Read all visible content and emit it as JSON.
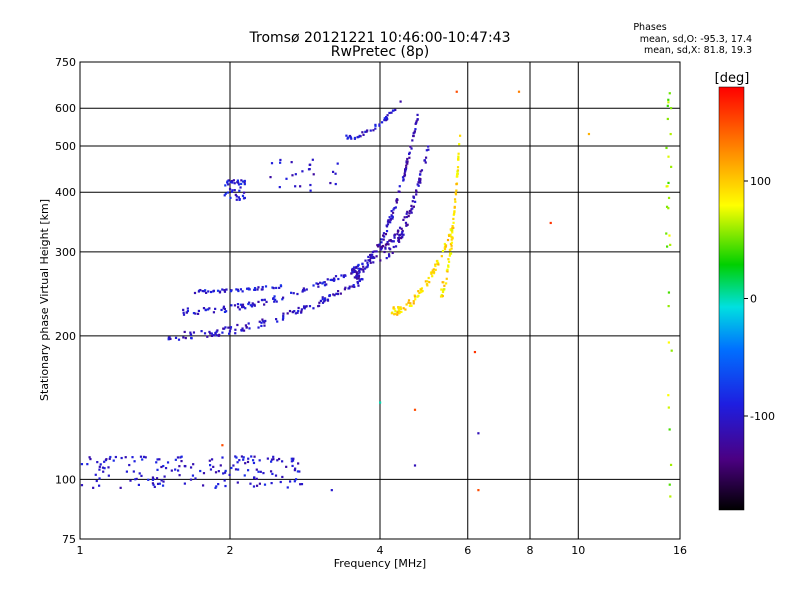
{
  "header": {
    "title": "Tromsø 20121221 10:46:00-10:47:43",
    "subtitle": "RwPretec (8p)",
    "stats_title": "Phases",
    "stats_line1": "mean, sd,O: -95.3, 17.4",
    "stats_line2": "mean, sd,X:  81.8, 19.3"
  },
  "colorbar": {
    "label": "[deg]",
    "min": -180,
    "max": 180,
    "ticks": [
      100,
      0,
      -100
    ],
    "tick_labels": [
      "100",
      "0",
      "-100"
    ]
  },
  "chart_data": {
    "type": "scatter",
    "xlabel": "Frequency [MHz]",
    "ylabel": "Stationary phase Virtual Height [km]",
    "xscale": "log",
    "yscale": "log",
    "xlim": [
      1,
      16
    ],
    "ylim": [
      75,
      750
    ],
    "x_ticks": [
      1,
      2,
      4,
      6,
      8,
      10,
      16
    ],
    "x_tick_labels": [
      "1",
      "2",
      "4",
      "6",
      "8",
      "10",
      "16"
    ],
    "y_ticks": [
      75,
      100,
      200,
      300,
      400,
      500,
      600,
      750
    ],
    "y_tick_labels": [
      "75",
      "100",
      "200",
      "300",
      "400",
      "500",
      "600",
      "750"
    ],
    "grid": true,
    "color_variable": "phase [deg]",
    "traces": [
      {
        "x_start": 1.5,
        "x_end": 3.7,
        "h_start": 200,
        "h_end": 262,
        "phase": -105,
        "density": 130,
        "spread": 8
      },
      {
        "x_start": 1.6,
        "x_end": 3.9,
        "h_start": 225,
        "h_end": 290,
        "phase": -100,
        "density": 110,
        "spread": 7
      },
      {
        "x_start": 1.7,
        "x_end": 2.6,
        "h_start": 248,
        "h_end": 255,
        "phase": -95,
        "density": 45,
        "spread": 4
      },
      {
        "x_start": 3.5,
        "x_end": 4.8,
        "h_start": 270,
        "h_end": 600,
        "phase": -110,
        "density": 120,
        "spread": 18
      },
      {
        "x_start": 4.0,
        "x_end": 5.0,
        "h_start": 300,
        "h_end": 500,
        "phase": -115,
        "density": 100,
        "spread": 25
      },
      {
        "x_start": 4.2,
        "x_end": 5.6,
        "h_start": 225,
        "h_end": 340,
        "phase": 95,
        "density": 90,
        "spread": 9
      },
      {
        "x_start": 5.3,
        "x_end": 5.8,
        "h_start": 250,
        "h_end": 550,
        "phase": 90,
        "density": 70,
        "spread": 22
      },
      {
        "x_start": 3.4,
        "x_end": 4.4,
        "h_start": 520,
        "h_end": 620,
        "phase": -100,
        "density": 40,
        "spread": 12
      }
    ],
    "clusters": [
      {
        "x_min": 1.0,
        "x_max": 2.8,
        "h_min": 96,
        "h_max": 112,
        "phase": -100,
        "count": 170
      },
      {
        "x_min": 1.95,
        "x_max": 2.15,
        "h_min": 385,
        "h_max": 425,
        "phase": -95,
        "count": 40
      },
      {
        "x_min": 2.3,
        "x_max": 3.3,
        "h_min": 400,
        "h_max": 470,
        "phase": -105,
        "count": 25
      },
      {
        "x_min": 15.0,
        "x_max": 15.4,
        "h_min": 90,
        "h_max": 650,
        "phase": 60,
        "count": 30
      }
    ],
    "outliers": [
      {
        "x": 5.7,
        "h": 650,
        "phase": 150
      },
      {
        "x": 7.6,
        "h": 650,
        "phase": 130
      },
      {
        "x": 10.5,
        "h": 530,
        "phase": 110
      },
      {
        "x": 8.8,
        "h": 345,
        "phase": 160
      },
      {
        "x": 6.2,
        "h": 185,
        "phase": 160
      },
      {
        "x": 4.7,
        "h": 140,
        "phase": 150
      },
      {
        "x": 4.7,
        "h": 107,
        "phase": -110
      },
      {
        "x": 6.3,
        "h": 95,
        "phase": 150
      },
      {
        "x": 1.93,
        "h": 118,
        "phase": 150
      },
      {
        "x": 3.2,
        "h": 95,
        "phase": -100
      },
      {
        "x": 4.0,
        "h": 145,
        "phase": 0
      },
      {
        "x": 6.3,
        "h": 125,
        "phase": -110
      }
    ]
  }
}
